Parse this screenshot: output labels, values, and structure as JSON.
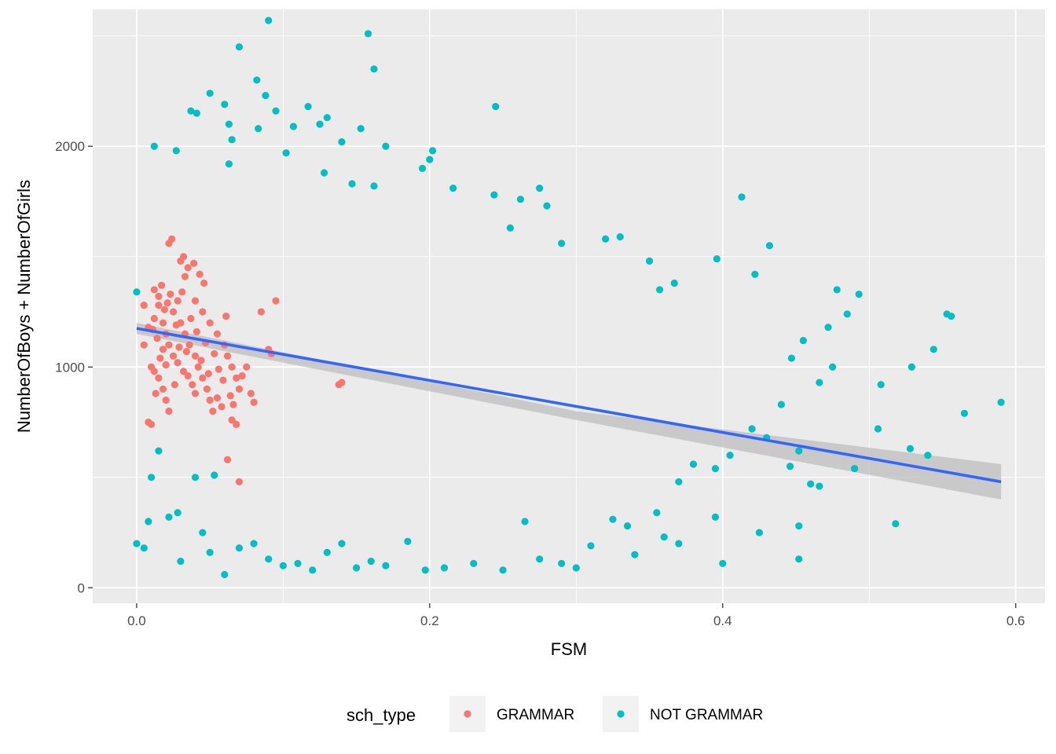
{
  "chart_data": {
    "type": "scatter",
    "title": "",
    "xlabel": "FSM",
    "ylabel": "NumberOfBoys + NumberOfGirls",
    "xlim": [
      -0.03,
      0.62
    ],
    "ylim": [
      -70,
      2620
    ],
    "x_ticks": [
      0.0,
      0.2,
      0.4,
      0.6
    ],
    "x_tick_labels": [
      "0.0",
      "0.2",
      "0.4",
      "0.6"
    ],
    "y_ticks": [
      0,
      1000,
      2000
    ],
    "y_tick_labels": [
      "0",
      "1000",
      "2000"
    ],
    "grid": true,
    "legend": {
      "title": "sch_type",
      "position": "bottom",
      "entries": [
        {
          "label": "GRAMMAR",
          "color": "#F8766D"
        },
        {
          "label": "NOT GRAMMAR",
          "color": "#00BFC4"
        }
      ]
    },
    "colors": {
      "panel_bg": "#EBEBEB",
      "grid": "#FFFFFF",
      "grammar": "#F8766D",
      "not_grammar": "#00BFC4",
      "smooth_line": "#3366FF",
      "ribbon": "#BEBEBE"
    },
    "series": [
      {
        "name": "GRAMMAR",
        "points": [
          [
            0.012,
            1350
          ],
          [
            0.015,
            1280
          ],
          [
            0.018,
            1200
          ],
          [
            0.02,
            1150
          ],
          [
            0.022,
            1100
          ],
          [
            0.025,
            1050
          ],
          [
            0.01,
            1000
          ],
          [
            0.012,
            980
          ],
          [
            0.015,
            950
          ],
          [
            0.018,
            900
          ],
          [
            0.02,
            850
          ],
          [
            0.022,
            800
          ],
          [
            0.008,
            750
          ],
          [
            0.01,
            740
          ],
          [
            0.025,
            1250
          ],
          [
            0.028,
            1300
          ],
          [
            0.03,
            1480
          ],
          [
            0.032,
            1500
          ],
          [
            0.035,
            1450
          ],
          [
            0.022,
            1560
          ],
          [
            0.024,
            1580
          ],
          [
            0.03,
            1200
          ],
          [
            0.033,
            1150
          ],
          [
            0.036,
            1100
          ],
          [
            0.04,
            1050
          ],
          [
            0.042,
            1000
          ],
          [
            0.045,
            950
          ],
          [
            0.048,
            900
          ],
          [
            0.05,
            850
          ],
          [
            0.052,
            800
          ],
          [
            0.04,
            1300
          ],
          [
            0.045,
            1250
          ],
          [
            0.05,
            1200
          ],
          [
            0.055,
            1150
          ],
          [
            0.06,
            1100
          ],
          [
            0.062,
            1050
          ],
          [
            0.065,
            1000
          ],
          [
            0.068,
            950
          ],
          [
            0.07,
            900
          ],
          [
            0.065,
            760
          ],
          [
            0.068,
            740
          ],
          [
            0.07,
            480
          ],
          [
            0.062,
            580
          ],
          [
            0.058,
            820
          ],
          [
            0.055,
            860
          ],
          [
            0.075,
            1000
          ],
          [
            0.078,
            880
          ],
          [
            0.08,
            840
          ],
          [
            0.085,
            1250
          ],
          [
            0.09,
            1080
          ],
          [
            0.092,
            1060
          ],
          [
            0.095,
            1300
          ],
          [
            0.138,
            920
          ],
          [
            0.14,
            930
          ],
          [
            0.005,
            1280
          ],
          [
            0.005,
            1100
          ],
          [
            0.008,
            1180
          ],
          [
            0.012,
            1220
          ],
          [
            0.015,
            1320
          ],
          [
            0.018,
            1080
          ],
          [
            0.028,
            1020
          ],
          [
            0.032,
            980
          ],
          [
            0.035,
            960
          ],
          [
            0.038,
            920
          ],
          [
            0.04,
            880
          ],
          [
            0.043,
            1420
          ],
          [
            0.046,
            1380
          ],
          [
            0.026,
            920
          ],
          [
            0.02,
            1010
          ],
          [
            0.016,
            1040
          ],
          [
            0.014,
            1130
          ],
          [
            0.013,
            880
          ],
          [
            0.011,
            1170
          ],
          [
            0.019,
            1260
          ],
          [
            0.023,
            1330
          ],
          [
            0.027,
            1190
          ],
          [
            0.029,
            1090
          ],
          [
            0.034,
            1070
          ],
          [
            0.037,
            1220
          ],
          [
            0.041,
            1160
          ],
          [
            0.044,
            1030
          ],
          [
            0.047,
            1110
          ],
          [
            0.049,
            970
          ],
          [
            0.053,
            1060
          ],
          [
            0.056,
            990
          ],
          [
            0.059,
            940
          ],
          [
            0.061,
            1230
          ],
          [
            0.064,
            870
          ],
          [
            0.066,
            830
          ],
          [
            0.072,
            960
          ],
          [
            0.017,
            1370
          ],
          [
            0.021,
            1290
          ],
          [
            0.031,
            1340
          ],
          [
            0.039,
            1470
          ],
          [
            0.033,
            1410
          ]
        ]
      },
      {
        "name": "NOT GRAMMAR",
        "points": [
          [
            0.09,
            2570
          ],
          [
            0.158,
            2510
          ],
          [
            0.07,
            2450
          ],
          [
            0.162,
            2350
          ],
          [
            0.082,
            2300
          ],
          [
            0.088,
            2230
          ],
          [
            0.05,
            2240
          ],
          [
            0.06,
            2190
          ],
          [
            0.037,
            2160
          ],
          [
            0.245,
            2180
          ],
          [
            0.117,
            2180
          ],
          [
            0.095,
            2160
          ],
          [
            0.13,
            2130
          ],
          [
            0.125,
            2100
          ],
          [
            0.041,
            2150
          ],
          [
            0.063,
            2100
          ],
          [
            0.107,
            2090
          ],
          [
            0.153,
            2080
          ],
          [
            0.083,
            2080
          ],
          [
            0.065,
            2030
          ],
          [
            0.14,
            2020
          ],
          [
            0.012,
            2000
          ],
          [
            0.17,
            2000
          ],
          [
            0.202,
            1980
          ],
          [
            0.027,
            1980
          ],
          [
            0.2,
            1940
          ],
          [
            0.102,
            1970
          ],
          [
            0.063,
            1920
          ],
          [
            0.195,
            1900
          ],
          [
            0.128,
            1880
          ],
          [
            0.147,
            1830
          ],
          [
            0.162,
            1820
          ],
          [
            0.216,
            1810
          ],
          [
            0.244,
            1780
          ],
          [
            0.275,
            1810
          ],
          [
            0.262,
            1760
          ],
          [
            0.28,
            1730
          ],
          [
            0.413,
            1770
          ],
          [
            0.32,
            1580
          ],
          [
            0.29,
            1560
          ],
          [
            0.255,
            1630
          ],
          [
            0.35,
            1480
          ],
          [
            0.396,
            1490
          ],
          [
            0.432,
            1550
          ],
          [
            0.422,
            1420
          ],
          [
            0.33,
            1590
          ],
          [
            0.367,
            1380
          ],
          [
            0.357,
            1350
          ],
          [
            0.485,
            1240
          ],
          [
            0.493,
            1330
          ],
          [
            0.553,
            1240
          ],
          [
            0.556,
            1230
          ],
          [
            0.529,
            1000
          ],
          [
            0.544,
            1080
          ],
          [
            0.59,
            840
          ],
          [
            0.565,
            790
          ],
          [
            0.54,
            600
          ],
          [
            0.506,
            720
          ],
          [
            0.49,
            540
          ],
          [
            0.466,
            930
          ],
          [
            0.455,
            1120
          ],
          [
            0.447,
            1040
          ],
          [
            0.44,
            830
          ],
          [
            0.43,
            680
          ],
          [
            0.42,
            720
          ],
          [
            0.405,
            600
          ],
          [
            0.395,
            540
          ],
          [
            0.395,
            320
          ],
          [
            0.4,
            110
          ],
          [
            0.38,
            560
          ],
          [
            0.37,
            480
          ],
          [
            0.37,
            200
          ],
          [
            0.36,
            230
          ],
          [
            0.355,
            340
          ],
          [
            0.34,
            150
          ],
          [
            0.335,
            280
          ],
          [
            0.325,
            310
          ],
          [
            0.31,
            190
          ],
          [
            0.3,
            90
          ],
          [
            0.29,
            110
          ],
          [
            0.275,
            130
          ],
          [
            0.265,
            300
          ],
          [
            0.25,
            80
          ],
          [
            0.23,
            110
          ],
          [
            0.21,
            90
          ],
          [
            0.197,
            80
          ],
          [
            0.185,
            210
          ],
          [
            0.17,
            100
          ],
          [
            0.16,
            120
          ],
          [
            0.15,
            90
          ],
          [
            0.14,
            200
          ],
          [
            0.13,
            160
          ],
          [
            0.12,
            80
          ],
          [
            0.11,
            110
          ],
          [
            0.1,
            100
          ],
          [
            0.09,
            130
          ],
          [
            0.08,
            200
          ],
          [
            0.07,
            180
          ],
          [
            0.06,
            60
          ],
          [
            0.05,
            160
          ],
          [
            0.03,
            120
          ],
          [
            0.005,
            180
          ],
          [
            0.0,
            200
          ],
          [
            0.008,
            300
          ],
          [
            0.022,
            320
          ],
          [
            0.028,
            340
          ],
          [
            0.045,
            250
          ],
          [
            0.053,
            510
          ],
          [
            0.04,
            500
          ],
          [
            0.01,
            500
          ],
          [
            0.015,
            620
          ],
          [
            0.452,
            620
          ],
          [
            0.446,
            550
          ],
          [
            0.46,
            470
          ],
          [
            0.466,
            460
          ],
          [
            0.452,
            280
          ],
          [
            0.452,
            130
          ],
          [
            0.425,
            250
          ],
          [
            0.518,
            290
          ],
          [
            0.508,
            920
          ],
          [
            0.475,
            1000
          ],
          [
            0.472,
            1180
          ],
          [
            0.478,
            1350
          ],
          [
            0.528,
            630
          ],
          [
            0.0,
            1340
          ]
        ]
      }
    ],
    "smooth": {
      "method": "lm",
      "color": "#3366FF",
      "x": [
        0.0,
        0.59
      ],
      "y": [
        1175,
        480
      ],
      "se_band": [
        [
          0.0,
          1200,
          1150
        ],
        [
          0.3,
          800,
          760
        ],
        [
          0.59,
          560,
          400
        ]
      ]
    }
  }
}
